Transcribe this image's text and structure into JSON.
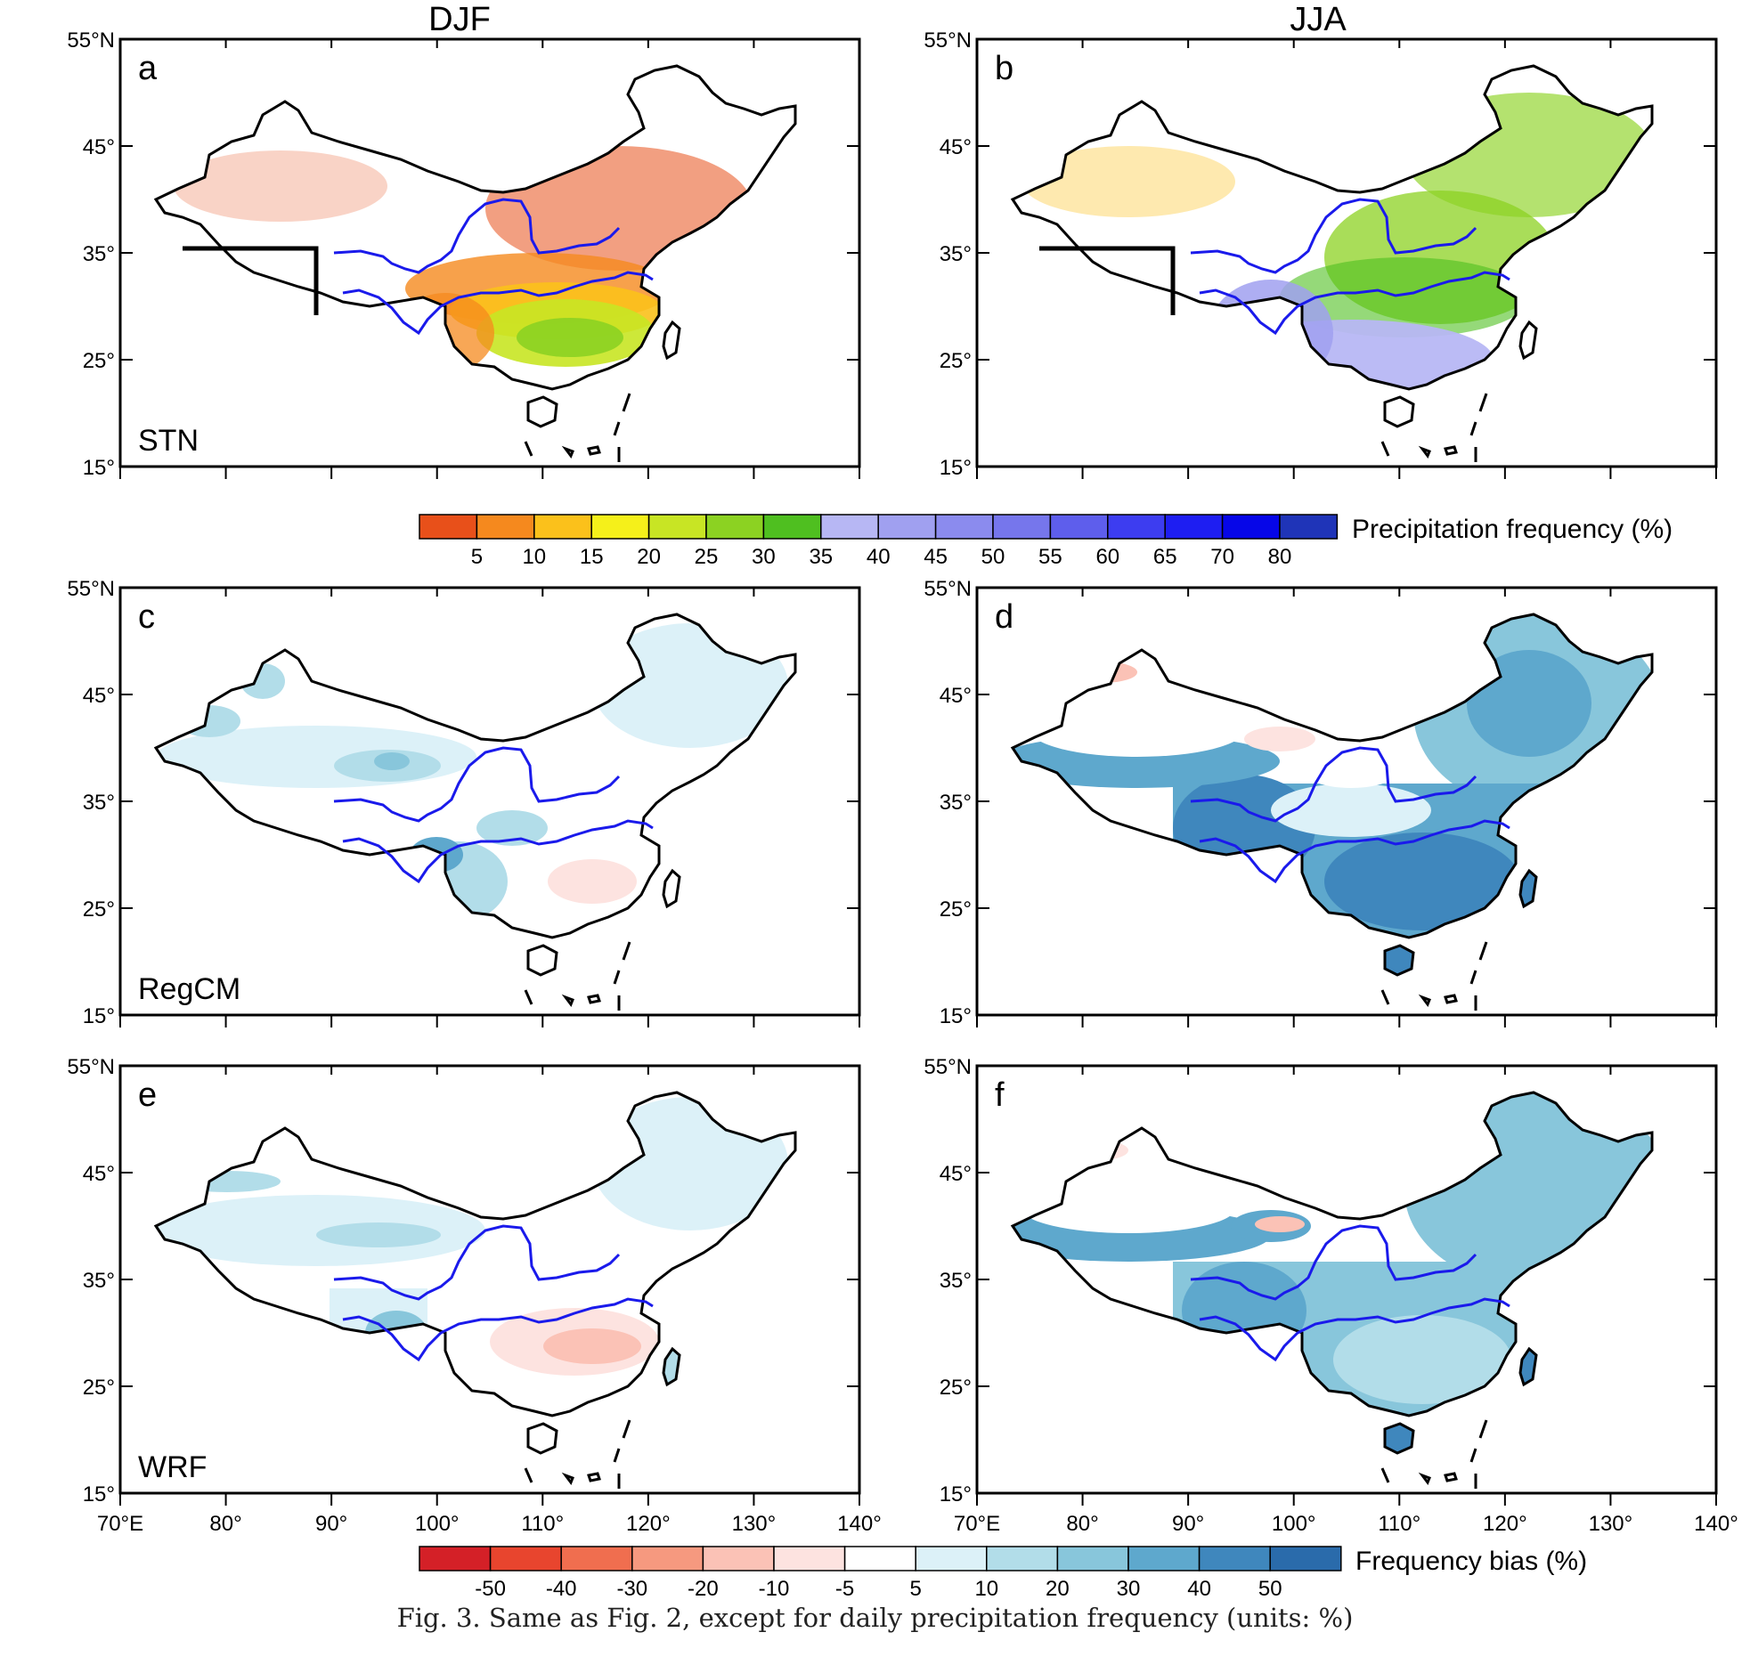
{
  "columns": [
    {
      "id": "djf",
      "title": "DJF"
    },
    {
      "id": "jja",
      "title": "JJA"
    }
  ],
  "rows": [
    {
      "id": "stn",
      "label": "STN",
      "panels": [
        "a",
        "b"
      ]
    },
    {
      "id": "regcm",
      "label": "RegCM",
      "panels": [
        "c",
        "d"
      ]
    },
    {
      "id": "wrf",
      "label": "WRF",
      "panels": [
        "e",
        "f"
      ]
    }
  ],
  "axes": {
    "lat_ticks": [
      "15°",
      "25°",
      "35°",
      "45°",
      "55°N"
    ],
    "lon_ticks": [
      "70°E",
      "80°",
      "90°",
      "100°",
      "110°",
      "120°",
      "130°",
      "140°"
    ],
    "lon_range": [
      70,
      140
    ],
    "lat_range": [
      15,
      55
    ]
  },
  "colorbars": {
    "frequency": {
      "title": "Precipitation frequency (%)",
      "labels": [
        "5",
        "10",
        "15",
        "20",
        "25",
        "30",
        "35",
        "40",
        "45",
        "50",
        "55",
        "60",
        "65",
        "70",
        "80"
      ],
      "colors": [
        "#e8501a",
        "#f5891e",
        "#fbc11b",
        "#f5f01a",
        "#c8e524",
        "#8cd222",
        "#4fbf20",
        "#b7b7f4",
        "#a0a0f0",
        "#8b8bee",
        "#7676ec",
        "#5e5eec",
        "#3d3df0",
        "#1e1ef2",
        "#0606e8",
        "#1f34b8"
      ]
    },
    "bias": {
      "title": "Frequency bias (%)",
      "labels": [
        "-50",
        "-40",
        "-30",
        "-20",
        "-10",
        "-5",
        "5",
        "10",
        "20",
        "30",
        "40",
        "50"
      ],
      "colors": [
        "#d42027",
        "#e8452e",
        "#f06e4f",
        "#f6997f",
        "#fbc2b6",
        "#fde3e0",
        "#ffffff",
        "#dcf1f8",
        "#b2dde9",
        "#88c6db",
        "#5ea8cd",
        "#3f87bd",
        "#2a6bab"
      ]
    }
  },
  "caption": "Fig. 3. Same as Fig. 2, except for daily precipitation frequency (units: %)"
}
